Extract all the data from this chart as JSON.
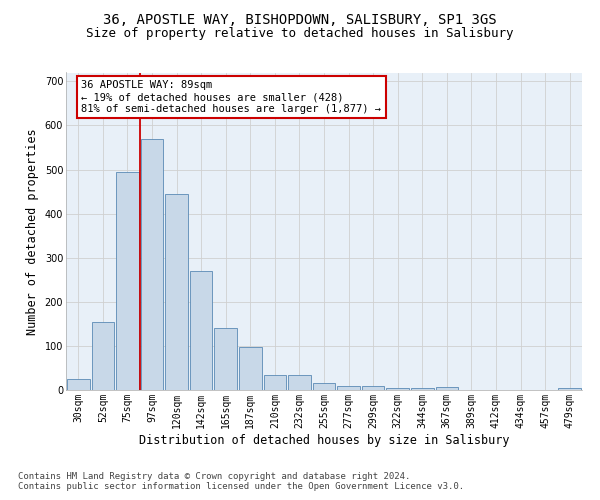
{
  "title_line1": "36, APOSTLE WAY, BISHOPDOWN, SALISBURY, SP1 3GS",
  "title_line2": "Size of property relative to detached houses in Salisbury",
  "xlabel": "Distribution of detached houses by size in Salisbury",
  "ylabel": "Number of detached properties",
  "bar_labels": [
    "30sqm",
    "52sqm",
    "75sqm",
    "97sqm",
    "120sqm",
    "142sqm",
    "165sqm",
    "187sqm",
    "210sqm",
    "232sqm",
    "255sqm",
    "277sqm",
    "299sqm",
    "322sqm",
    "344sqm",
    "367sqm",
    "389sqm",
    "412sqm",
    "434sqm",
    "457sqm",
    "479sqm"
  ],
  "bar_values": [
    25,
    155,
    495,
    570,
    445,
    270,
    140,
    98,
    33,
    33,
    15,
    10,
    8,
    4,
    4,
    7,
    0,
    0,
    0,
    0,
    5
  ],
  "bar_color": "#c8d8e8",
  "bar_edge_color": "#5a8ab5",
  "vline_color": "#cc0000",
  "annotation_text": "36 APOSTLE WAY: 89sqm\n← 19% of detached houses are smaller (428)\n81% of semi-detached houses are larger (1,877) →",
  "annotation_box_color": "white",
  "annotation_box_edge_color": "#cc0000",
  "ylim": [
    0,
    720
  ],
  "yticks": [
    0,
    100,
    200,
    300,
    400,
    500,
    600,
    700
  ],
  "grid_color": "#d0d0d0",
  "background_color": "#e8f0f8",
  "footer_line1": "Contains HM Land Registry data © Crown copyright and database right 2024.",
  "footer_line2": "Contains public sector information licensed under the Open Government Licence v3.0.",
  "title_fontsize": 10,
  "subtitle_fontsize": 9,
  "xlabel_fontsize": 8.5,
  "ylabel_fontsize": 8.5,
  "tick_fontsize": 7,
  "footer_fontsize": 6.5,
  "annot_fontsize": 7.5
}
